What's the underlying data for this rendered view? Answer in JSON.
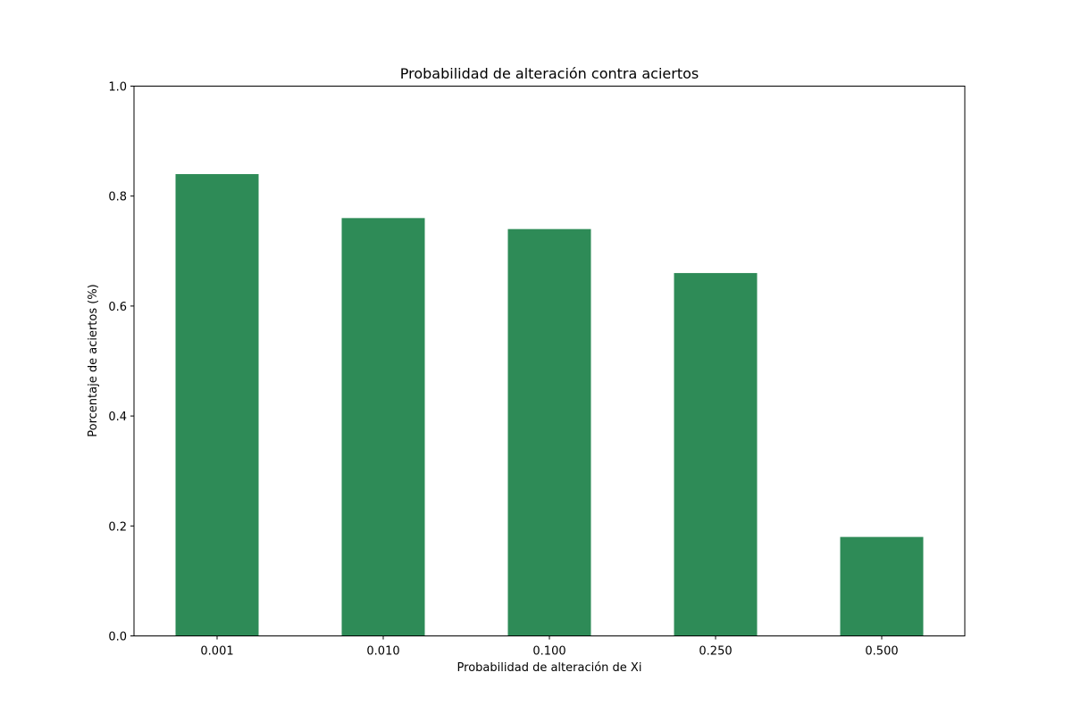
{
  "chart_data": {
    "type": "bar",
    "title": "Probabilidad de alteración contra aciertos",
    "xlabel": "Probabilidad de alteración de Xi",
    "ylabel": "Porcentaje de aciertos (%)",
    "categories": [
      "0.001",
      "0.010",
      "0.100",
      "0.250",
      "0.500"
    ],
    "values": [
      0.84,
      0.76,
      0.74,
      0.66,
      0.18
    ],
    "ylim": [
      0,
      1
    ],
    "yticks": [
      "0.0",
      "0.2",
      "0.4",
      "0.6",
      "0.8",
      "1.0"
    ],
    "bar_color": "#2e8b57",
    "grid": false,
    "legend": "none"
  }
}
